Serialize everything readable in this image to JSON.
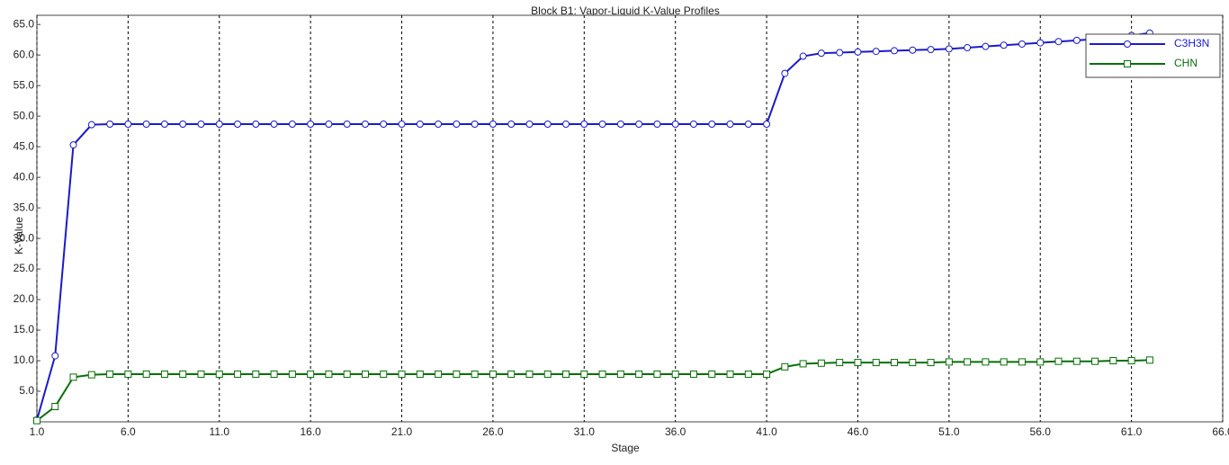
{
  "chart_data": {
    "type": "line",
    "title": "Block B1: Vapor-Liquid K-Value Profiles",
    "x_label": "Stage",
    "y_label": "K-Value",
    "x": [
      1,
      2,
      3,
      4,
      5,
      6,
      7,
      8,
      9,
      10,
      11,
      12,
      13,
      14,
      15,
      16,
      17,
      18,
      19,
      20,
      21,
      22,
      23,
      24,
      25,
      26,
      27,
      28,
      29,
      30,
      31,
      32,
      33,
      34,
      35,
      36,
      37,
      38,
      39,
      40,
      41,
      42,
      43,
      44,
      45,
      46,
      47,
      48,
      49,
      50,
      51,
      52,
      53,
      54,
      55,
      56,
      57,
      58,
      59,
      60,
      61,
      62
    ],
    "series": [
      {
        "name": "C3H3N",
        "color": "#1a1acc",
        "marker": "circle",
        "values": [
          0.3,
          10.8,
          45.3,
          48.6,
          48.7,
          48.7,
          48.7,
          48.7,
          48.7,
          48.7,
          48.7,
          48.7,
          48.7,
          48.7,
          48.7,
          48.7,
          48.7,
          48.7,
          48.7,
          48.7,
          48.7,
          48.7,
          48.7,
          48.7,
          48.7,
          48.7,
          48.7,
          48.7,
          48.7,
          48.7,
          48.7,
          48.7,
          48.7,
          48.7,
          48.7,
          48.7,
          48.7,
          48.7,
          48.7,
          48.7,
          48.7,
          57.0,
          59.8,
          60.3,
          60.4,
          60.5,
          60.6,
          60.7,
          60.8,
          60.9,
          61.0,
          61.2,
          61.4,
          61.6,
          61.8,
          62.0,
          62.2,
          62.4,
          62.6,
          62.9,
          63.2,
          63.6
        ]
      },
      {
        "name": "CHN",
        "color": "#087008",
        "marker": "square",
        "values": [
          0.2,
          2.5,
          7.3,
          7.7,
          7.8,
          7.8,
          7.8,
          7.8,
          7.8,
          7.8,
          7.8,
          7.8,
          7.8,
          7.8,
          7.8,
          7.8,
          7.8,
          7.8,
          7.8,
          7.8,
          7.8,
          7.8,
          7.8,
          7.8,
          7.8,
          7.8,
          7.8,
          7.8,
          7.8,
          7.8,
          7.8,
          7.8,
          7.8,
          7.8,
          7.8,
          7.8,
          7.8,
          7.8,
          7.8,
          7.8,
          7.8,
          9.0,
          9.5,
          9.6,
          9.7,
          9.7,
          9.7,
          9.7,
          9.7,
          9.7,
          9.8,
          9.8,
          9.8,
          9.8,
          9.8,
          9.8,
          9.9,
          9.9,
          9.9,
          10.0,
          10.0,
          10.1
        ]
      }
    ],
    "xlim": [
      1,
      66
    ],
    "ylim": [
      0,
      66.5
    ],
    "xticks": [
      {
        "value": 1,
        "label": "1.0"
      },
      {
        "value": 6,
        "label": "6.0"
      },
      {
        "value": 11,
        "label": "11.0"
      },
      {
        "value": 16,
        "label": "16.0"
      },
      {
        "value": 21,
        "label": "21.0"
      },
      {
        "value": 26,
        "label": "26.0"
      },
      {
        "value": 31,
        "label": "31.0"
      },
      {
        "value": 36,
        "label": "36.0"
      },
      {
        "value": 41,
        "label": "41.0"
      },
      {
        "value": 46,
        "label": "46.0"
      },
      {
        "value": 51,
        "label": "51.0"
      },
      {
        "value": 56,
        "label": "56.0"
      },
      {
        "value": 61,
        "label": "61.0"
      },
      {
        "value": 66,
        "label": "66.0"
      }
    ],
    "yticks": [
      {
        "value": 5,
        "label": "5.0"
      },
      {
        "value": 10,
        "label": "10.0"
      },
      {
        "value": 15,
        "label": "15.0"
      },
      {
        "value": 20,
        "label": "20.0"
      },
      {
        "value": 25,
        "label": "25.0"
      },
      {
        "value": 30,
        "label": "30.0"
      },
      {
        "value": 35,
        "label": "35.0"
      },
      {
        "value": 40,
        "label": "40.0"
      },
      {
        "value": 45,
        "label": "45.0"
      },
      {
        "value": 50,
        "label": "50.0"
      },
      {
        "value": 55,
        "label": "55.0"
      },
      {
        "value": 60,
        "label": "60.0"
      },
      {
        "value": 65,
        "label": "65.0"
      }
    ],
    "grid": true,
    "legend": "top-right"
  }
}
